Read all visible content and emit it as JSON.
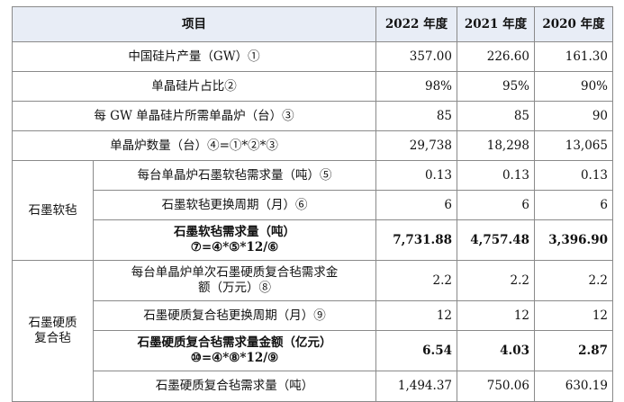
{
  "table": {
    "header": {
      "item": "项目",
      "y2022": "2022 年度",
      "y2021": "2021 年度",
      "y2020": "2020 年度"
    },
    "rows": [
      {
        "label": "中国硅片产量（GW）①",
        "v2022": "357.00",
        "v2021": "226.60",
        "v2020": "161.30"
      },
      {
        "label": "单晶硅片占比②",
        "v2022": "98%",
        "v2021": "95%",
        "v2020": "90%"
      },
      {
        "label": "每 GW 单晶硅片所需单晶炉（台）③",
        "v2022": "85",
        "v2021": "85",
        "v2020": "90"
      },
      {
        "label": "单晶炉数量（台）④=①*②*③",
        "v2022": "29,738",
        "v2021": "18,298",
        "v2020": "13,065"
      }
    ],
    "groups": [
      {
        "name": "石墨软毡",
        "rows": [
          {
            "label": "每台单晶炉石墨软毡需求量（吨）⑤",
            "v2022": "0.13",
            "v2021": "0.13",
            "v2020": "0.13"
          },
          {
            "label": "石墨软毡更换周期（月）⑥",
            "v2022": "6",
            "v2021": "6",
            "v2020": "6"
          },
          {
            "label_line1": "石墨软毡需求量（吨）",
            "label_line2": "⑦=④*⑤*12/⑥",
            "v2022": "7,731.88",
            "v2021": "4,757.48",
            "v2020": "3,396.90"
          }
        ]
      },
      {
        "name_line1": "石墨硬质",
        "name_line2": "复合毡",
        "rows": [
          {
            "label_line1": "每台单晶炉单次石墨硬质复合毡需求金",
            "label_line2": "额（万元）⑧",
            "v2022": "2.2",
            "v2021": "2.2",
            "v2020": "2.2"
          },
          {
            "label": "石墨硬质复合毡更换周期（月）⑨",
            "v2022": "12",
            "v2021": "12",
            "v2020": "12"
          },
          {
            "label_line1": "石墨硬质复合毡需求量金额（亿元）",
            "label_line2": "⑩=④*⑧*12/⑨",
            "v2022": "6.54",
            "v2021": "4.03",
            "v2020": "2.87"
          },
          {
            "label": "石墨硬质复合毡需求量（吨）",
            "v2022": "1,494.37",
            "v2021": "750.06",
            "v2020": "630.19"
          }
        ]
      }
    ]
  }
}
